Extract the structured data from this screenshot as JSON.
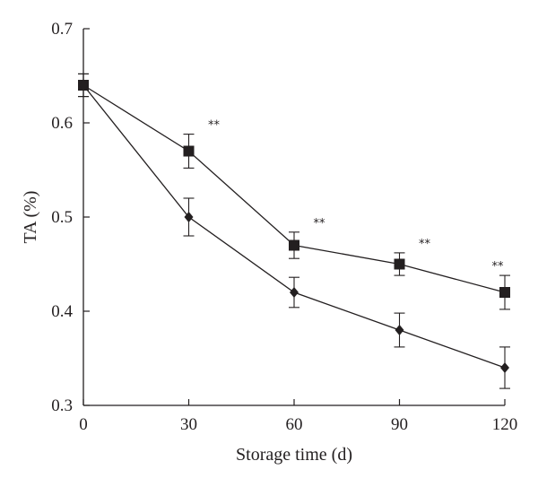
{
  "chart_data": {
    "type": "line",
    "xlabel": "Storage time (d)",
    "ylabel": "TA (%)",
    "x": [
      0,
      30,
      60,
      90,
      120
    ],
    "xlim": [
      0,
      120
    ],
    "ylim": [
      0.3,
      0.7
    ],
    "x_ticks": [
      "0",
      "30",
      "60",
      "90",
      "120"
    ],
    "y_ticks": [
      "0.3",
      "0.4",
      "0.5",
      "0.6",
      "0.7"
    ],
    "series": [
      {
        "marker": "square",
        "values": [
          0.64,
          0.57,
          0.47,
          0.45,
          0.42
        ],
        "error": [
          0.012,
          0.018,
          0.014,
          0.012,
          0.018
        ]
      },
      {
        "marker": "diamond",
        "values": [
          0.64,
          0.5,
          0.42,
          0.38,
          0.34
        ],
        "error": [
          0.012,
          0.02,
          0.016,
          0.018,
          0.022
        ]
      }
    ],
    "annotations": [
      "**",
      "**",
      "**",
      "**"
    ],
    "legend": false,
    "grid": false,
    "color": "#231f20"
  }
}
